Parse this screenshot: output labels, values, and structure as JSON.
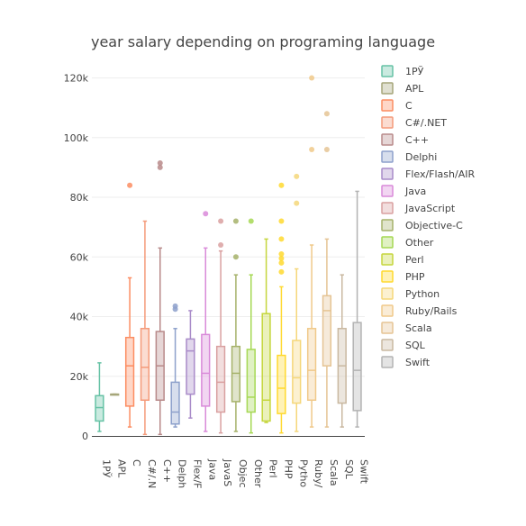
{
  "chart_data": {
    "type": "box",
    "title": "year salary depending on programing language",
    "xlabel": "",
    "ylabel": "",
    "ylim": [
      0,
      125000
    ],
    "y_ticks": [
      0,
      20000,
      40000,
      60000,
      80000,
      100000,
      120000
    ],
    "y_tick_labels": [
      "0",
      "20k",
      "40k",
      "60k",
      "80k",
      "100k",
      "120k"
    ],
    "grid": "y",
    "legend_position": "right",
    "series": [
      {
        "name": "1PЎ",
        "tick_label": "1PЎ",
        "color": "#66c2a5",
        "min": 1500,
        "q1": 5000,
        "median": 9500,
        "q3": 13500,
        "max": 24500,
        "outliers": []
      },
      {
        "name": "APL",
        "tick_label": "APL",
        "color": "#a6a67a",
        "min": 14000,
        "q1": 14000,
        "median": 14000,
        "q3": 14000,
        "max": 14000,
        "outliers": []
      },
      {
        "name": "C",
        "tick_label": "C",
        "color": "#fc8d62",
        "min": 3000,
        "q1": 10000,
        "median": 23500,
        "q3": 33000,
        "max": 53000,
        "outliers": [
          84000
        ]
      },
      {
        "name": "C#/.NET",
        "tick_label": "C#/.N",
        "color": "#f49a7a",
        "min": 500,
        "q1": 12000,
        "median": 23000,
        "q3": 36000,
        "max": 72000,
        "outliers": []
      },
      {
        "name": "C++",
        "tick_label": "C++",
        "color": "#b88a8a",
        "min": 500,
        "q1": 12000,
        "median": 23500,
        "q3": 35000,
        "max": 63000,
        "outliers": [
          90000,
          91500
        ]
      },
      {
        "name": "Delphi",
        "tick_label": "Delph",
        "color": "#8da0cb",
        "min": 3000,
        "q1": 4000,
        "median": 8000,
        "q3": 18000,
        "max": 36000,
        "outliers": [
          42500,
          43500
        ]
      },
      {
        "name": "Flex/Flash/AIR",
        "tick_label": "Flex/F",
        "color": "#a98bc9",
        "min": 6000,
        "q1": 14000,
        "median": 28500,
        "q3": 32500,
        "max": 42000,
        "outliers": []
      },
      {
        "name": "Java",
        "tick_label": "Java",
        "color": "#d98ad9",
        "min": 1500,
        "q1": 10000,
        "median": 21000,
        "q3": 34000,
        "max": 63000,
        "outliers": [
          74500
        ]
      },
      {
        "name": "JavaScript",
        "tick_label": "JavaS",
        "color": "#d9a0a0",
        "min": 1000,
        "q1": 8000,
        "median": 18000,
        "q3": 30000,
        "max": 62000,
        "outliers": [
          64000,
          72000
        ]
      },
      {
        "name": "Objective-C",
        "tick_label": "Objec",
        "color": "#a6b26a",
        "min": 1500,
        "q1": 11500,
        "median": 21000,
        "q3": 30000,
        "max": 54000,
        "outliers": [
          60000,
          72000
        ]
      },
      {
        "name": "Other",
        "tick_label": "Other",
        "color": "#a6d854",
        "min": 1000,
        "q1": 8000,
        "median": 13000,
        "q3": 29000,
        "max": 54000,
        "outliers": [
          72000
        ]
      },
      {
        "name": "Perl",
        "tick_label": "Perl",
        "color": "#c5d63d",
        "min": 4500,
        "q1": 5000,
        "median": 12000,
        "q3": 41000,
        "max": 66000,
        "outliers": []
      },
      {
        "name": "PHP",
        "tick_label": "PHP",
        "color": "#ffd92f",
        "min": 1000,
        "q1": 7500,
        "median": 16000,
        "q3": 27000,
        "max": 50000,
        "outliers": [
          55000,
          58000,
          59500,
          61000,
          66000,
          72000,
          84000
        ]
      },
      {
        "name": "Python",
        "tick_label": "Pytho",
        "color": "#f5d77a",
        "min": 1500,
        "q1": 11000,
        "median": 19500,
        "q3": 32000,
        "max": 56000,
        "outliers": [
          78000,
          87000
        ]
      },
      {
        "name": "Ruby/Rails",
        "tick_label": "Ruby/",
        "color": "#f0c98a",
        "min": 3000,
        "q1": 12000,
        "median": 22000,
        "q3": 36000,
        "max": 64000,
        "outliers": [
          96000,
          120000
        ]
      },
      {
        "name": "Scala",
        "tick_label": "Scala",
        "color": "#e5c494",
        "min": 3000,
        "q1": 23500,
        "median": 42000,
        "q3": 47000,
        "max": 66000,
        "outliers": [
          96000,
          108000
        ]
      },
      {
        "name": "SQL",
        "tick_label": "SQL",
        "color": "#c9b8a0",
        "min": 3000,
        "q1": 11000,
        "median": 23500,
        "q3": 36000,
        "max": 54000,
        "outliers": []
      },
      {
        "name": "Swift",
        "tick_label": "Swift",
        "color": "#b3b3b3",
        "min": 3000,
        "q1": 8500,
        "median": 22000,
        "q3": 38000,
        "max": 82000,
        "outliers": []
      }
    ]
  }
}
